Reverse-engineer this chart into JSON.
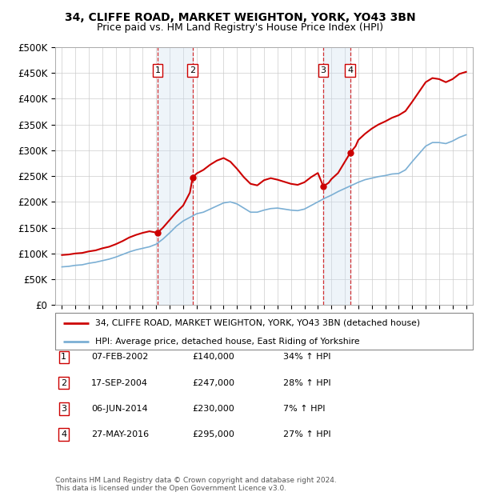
{
  "title1": "34, CLIFFE ROAD, MARKET WEIGHTON, YORK, YO43 3BN",
  "title2": "Price paid vs. HM Land Registry's House Price Index (HPI)",
  "ylabel_ticks": [
    "£0",
    "£50K",
    "£100K",
    "£150K",
    "£200K",
    "£250K",
    "£300K",
    "£350K",
    "£400K",
    "£450K",
    "£500K"
  ],
  "ytick_values": [
    0,
    50000,
    100000,
    150000,
    200000,
    250000,
    300000,
    350000,
    400000,
    450000,
    500000
  ],
  "xlim": [
    1994.5,
    2025.5
  ],
  "ylim": [
    0,
    500000
  ],
  "sale_points": [
    {
      "label": 1,
      "year": 2002.1,
      "price": 140000,
      "date": "07-FEB-2002",
      "pct": "34%"
    },
    {
      "label": 2,
      "year": 2004.7,
      "price": 247000,
      "date": "17-SEP-2004",
      "pct": "28%"
    },
    {
      "label": 3,
      "year": 2014.4,
      "price": 230000,
      "date": "06-JUN-2014",
      "pct": "7%"
    },
    {
      "label": 4,
      "year": 2016.4,
      "price": 295000,
      "date": "27-MAY-2016",
      "pct": "27%"
    }
  ],
  "hpi_line_color": "#7bafd4",
  "price_line_color": "#cc0000",
  "dot_color": "#cc0000",
  "shade_color": "#cfe0f0",
  "grid_color": "#cccccc",
  "footnote": "Contains HM Land Registry data © Crown copyright and database right 2024.\nThis data is licensed under the Open Government Licence v3.0.",
  "legend1": "34, CLIFFE ROAD, MARKET WEIGHTON, YORK, YO43 3BN (detached house)",
  "legend2": "HPI: Average price, detached house, East Riding of Yorkshire"
}
